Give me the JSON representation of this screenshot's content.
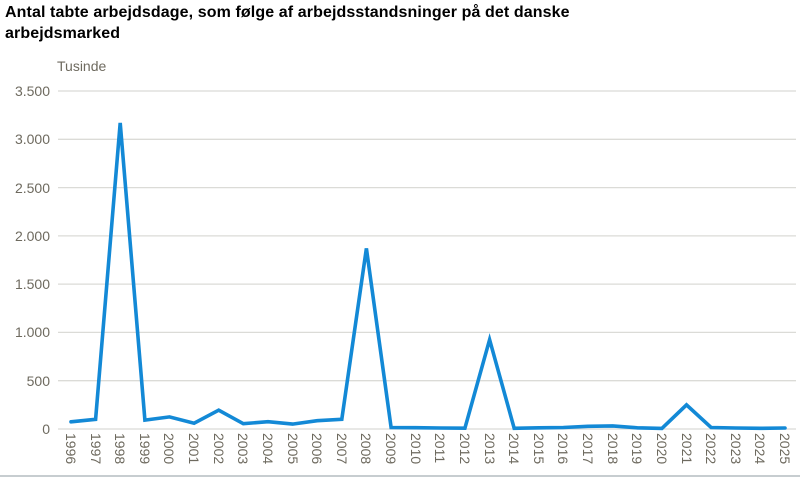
{
  "title": {
    "line1": "Antal tabte arbejdsdage, som følge af arbejdsstandsninger på det danske",
    "line2": "arbejdsmarked"
  },
  "chart_data": {
    "type": "line",
    "title": "Antal tabte arbejdsdage, som følge af arbejdsstandsninger på det danske arbejdsmarked",
    "ylabel": "Tusinde",
    "xlabel": "",
    "x": [
      1996,
      1997,
      1998,
      1999,
      2000,
      2001,
      2002,
      2003,
      2004,
      2005,
      2006,
      2007,
      2008,
      2009,
      2010,
      2011,
      2012,
      2013,
      2014,
      2015,
      2016,
      2017,
      2018,
      2019,
      2020,
      2021,
      2022,
      2023,
      2024,
      2025
    ],
    "values": [
      75,
      100,
      3170,
      92,
      125,
      60,
      195,
      55,
      76,
      51,
      86,
      100,
      1870,
      16,
      13,
      10,
      8,
      925,
      7,
      12,
      16,
      28,
      32,
      12,
      6,
      250,
      16,
      10,
      7,
      10
    ],
    "ylim": [
      0,
      3500
    ],
    "yticks": [
      0,
      500,
      1000,
      1500,
      2000,
      2500,
      3000,
      3500
    ],
    "ytick_labels": [
      "0",
      "500",
      "1.000",
      "1.500",
      "2.000",
      "2.500",
      "3.000",
      "3.500"
    ],
    "grid": "horizontal",
    "legend_position": "none",
    "line_color": "#1389D6",
    "grid_color": "#DBDBD7",
    "axis_label_color": "#6E6A5F"
  }
}
